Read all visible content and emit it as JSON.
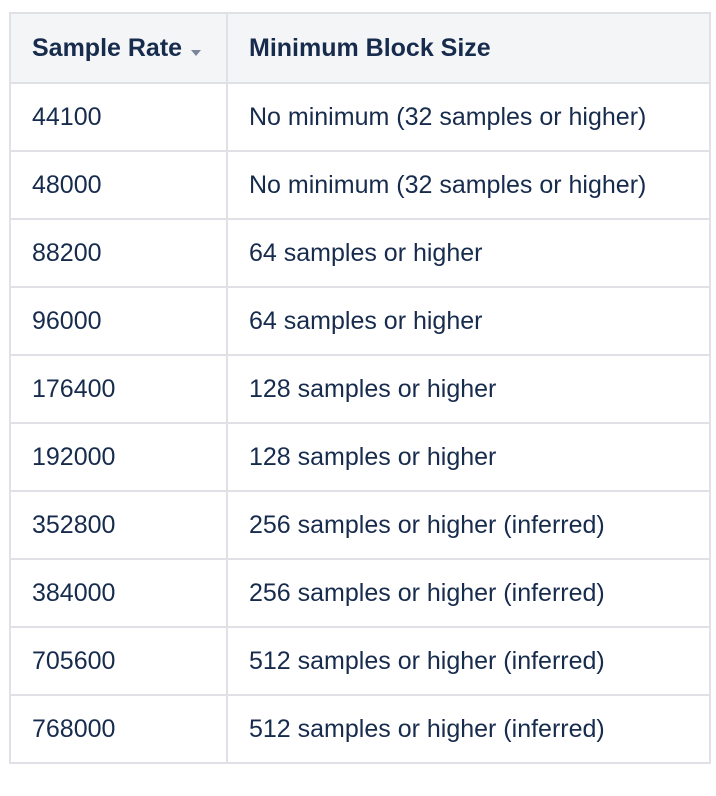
{
  "table": {
    "columns": [
      {
        "label": "Sample Rate",
        "sortable": true,
        "sort_direction": "descending"
      },
      {
        "label": "Minimum Block Size"
      }
    ],
    "rows": [
      [
        "44100",
        "No minimum (32 samples or higher)"
      ],
      [
        "48000",
        "No minimum (32 samples or higher)"
      ],
      [
        "88200",
        "64 samples or higher"
      ],
      [
        "96000",
        "64 samples or higher"
      ],
      [
        "176400",
        "128 samples or higher"
      ],
      [
        "192000",
        "128 samples or higher"
      ],
      [
        "352800",
        "256 samples or higher (inferred)"
      ],
      [
        "384000",
        "256 samples or higher (inferred)"
      ],
      [
        "705600",
        "512 samples or higher (inferred)"
      ],
      [
        "768000",
        "512 samples or higher (inferred)"
      ]
    ]
  },
  "colors": {
    "text": "#172b4d",
    "header_background": "#f4f5f7",
    "border": "#dfe1e6",
    "sort_icon": "#7a869a"
  },
  "icons": {
    "sort": "sort-descending-icon"
  }
}
